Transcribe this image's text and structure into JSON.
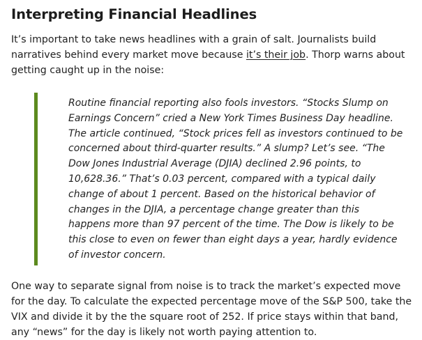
{
  "article": {
    "heading": "Interpreting Financial Headlines",
    "intro": {
      "before_link": "It’s important to take news headlines with a grain of salt. Journalists build narratives behind every market move because ",
      "link_text": "it’s their job",
      "after_link": ". Thorp warns about getting caught up in the noise:"
    },
    "quote": "Routine financial reporting also fools investors. “Stocks Slump on Earnings Concern” cried a New York Times Business Day headline. The article continued, “Stock prices fell as investors continued to be concerned about third-quarter results.” A slump? Let’s see. “The Dow Jones Industrial Average (DJIA) declined 2.96 points, to 10,628.36.” That’s 0.03 percent, compared with a typical daily change of about 1 percent. Based on the historical behavior of changes in the DJIA, a percentage change greater than this happens more than 97 percent of the time. The Dow is likely to be this close to even on fewer than eight days a year, hardly evidence of investor concern.",
    "outro": "One way to separate signal from noise is to track the market’s expected move for the day. To calculate the expected percentage move of the S&P 500, take the VIX and divide it by the the square root of 252. If price stays within that band, any “news” for the day is likely not worth paying attention to."
  },
  "colors": {
    "quote_border": "#5c8a1e",
    "text": "#222222"
  }
}
